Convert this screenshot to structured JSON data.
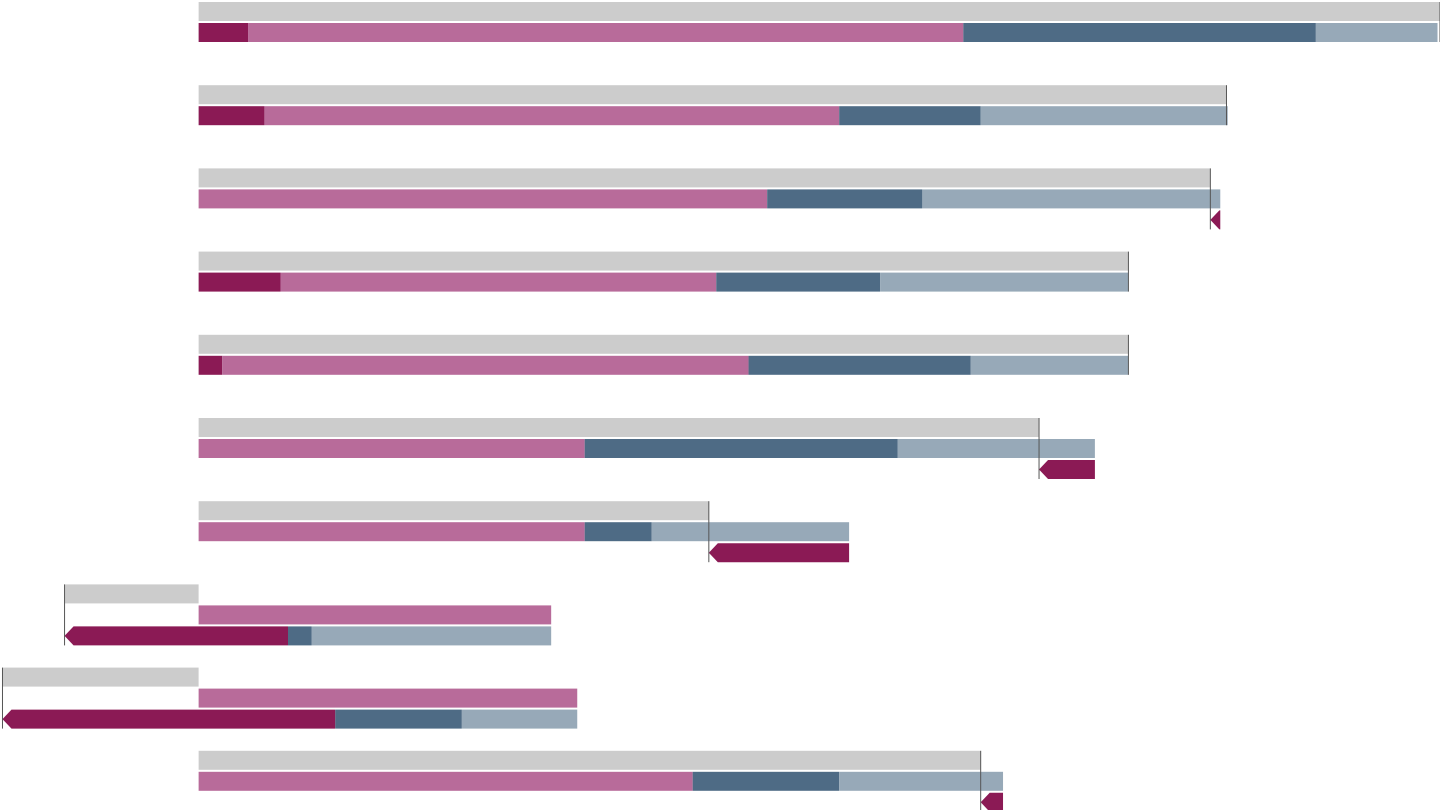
{
  "chart_data": {
    "type": "waterfall-rows",
    "xlim": [
      -16,
      100
    ],
    "reference": {
      "color": "#cccccc",
      "values": [
        100,
        82.8,
        81.5,
        74.9,
        74.9,
        67.7,
        41.1,
        -10.8,
        -15.8,
        63.0
      ]
    },
    "reference_line_color": "#555555",
    "series": [
      {
        "color": "#8b1a55",
        "values": [
          4.0,
          5.3,
          -0.8,
          6.6,
          1.9,
          -4.5,
          -11.3,
          -18.0,
          -26.8,
          -1.8
        ]
      },
      {
        "color": "#b86b9a",
        "values": [
          57.6,
          46.3,
          45.8,
          35.1,
          42.4,
          31.1,
          31.1,
          28.4,
          30.5,
          39.8
        ]
      },
      {
        "color": "#4e6b85",
        "values": [
          28.4,
          11.4,
          12.5,
          13.2,
          17.9,
          25.2,
          5.4,
          -1.9,
          -10.2,
          11.8
        ]
      },
      {
        "color": "#97a9b8",
        "values": [
          9.8,
          19.9,
          24.0,
          20.0,
          12.7,
          15.9,
          15.9,
          -19.3,
          -9.3,
          13.2
        ]
      }
    ]
  }
}
